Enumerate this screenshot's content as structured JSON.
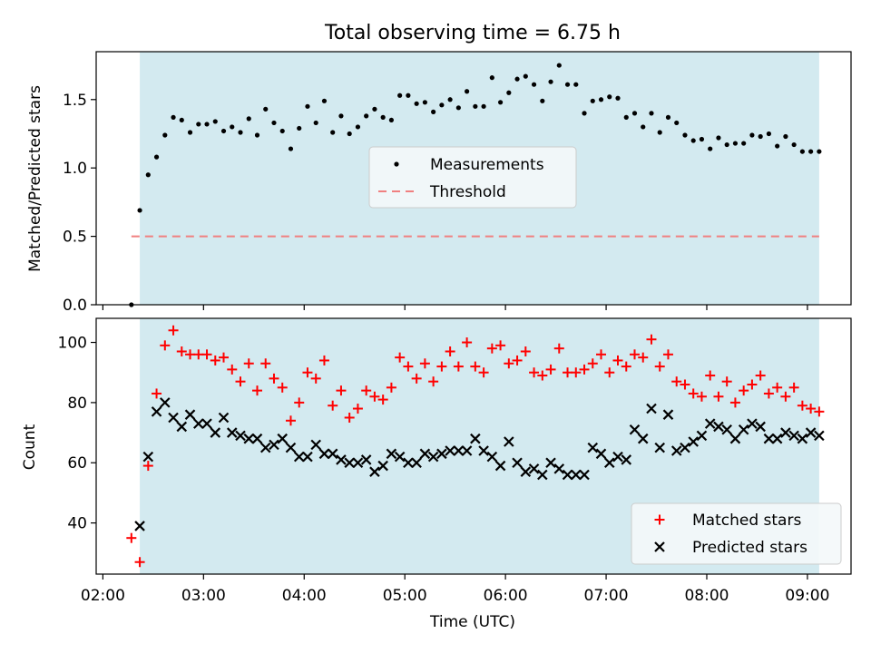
{
  "figure": {
    "title": "Total observing time = 6.75 h"
  },
  "colors": {
    "observing_span": "#d3eaf0",
    "measurements": "#000000",
    "threshold": "#f08080",
    "matched": "#ff0000",
    "predicted": "#000000"
  },
  "chart_data": [
    {
      "type": "scatter",
      "ylabel": "Matched/Predicted stars",
      "xlabel": "",
      "x_range": [
        "01:56",
        "09:26"
      ],
      "ylim": [
        0,
        1.85
      ],
      "yticks": [
        "0.0",
        "0.5",
        "1.0",
        "1.5"
      ],
      "shaded_span": [
        "02:22",
        "09:07"
      ],
      "threshold": 0.5,
      "threshold_range": [
        "02:17",
        "09:07"
      ],
      "legend": {
        "position": "center",
        "entries": [
          "Measurements",
          "Threshold"
        ]
      },
      "series": [
        {
          "name": "Measurements",
          "x": [
            "02:17",
            "02:22",
            "02:27",
            "02:32",
            "02:37",
            "02:42",
            "02:47",
            "02:52",
            "02:57",
            "03:02",
            "03:07",
            "03:12",
            "03:17",
            "03:22",
            "03:27",
            "03:32",
            "03:37",
            "03:42",
            "03:47",
            "03:52",
            "03:57",
            "04:02",
            "04:07",
            "04:12",
            "04:17",
            "04:22",
            "04:27",
            "04:32",
            "04:37",
            "04:42",
            "04:47",
            "04:52",
            "04:57",
            "05:02",
            "05:07",
            "05:12",
            "05:17",
            "05:22",
            "05:27",
            "05:32",
            "05:37",
            "05:42",
            "05:47",
            "05:52",
            "05:57",
            "06:02",
            "06:07",
            "06:12",
            "06:17",
            "06:22",
            "06:27",
            "06:32",
            "06:37",
            "06:42",
            "06:47",
            "06:52",
            "06:57",
            "07:02",
            "07:07",
            "07:12",
            "07:17",
            "07:22",
            "07:27",
            "07:32",
            "07:37",
            "07:42",
            "07:47",
            "07:52",
            "07:57",
            "08:02",
            "08:07",
            "08:12",
            "08:17",
            "08:22",
            "08:27",
            "08:32",
            "08:37",
            "08:42",
            "08:47",
            "08:52",
            "08:57",
            "09:02",
            "09:07"
          ],
          "values": [
            0.0,
            0.69,
            0.95,
            1.08,
            1.24,
            1.37,
            1.35,
            1.26,
            1.32,
            1.32,
            1.34,
            1.27,
            1.3,
            1.26,
            1.36,
            1.24,
            1.43,
            1.33,
            1.27,
            1.14,
            1.29,
            1.45,
            1.33,
            1.49,
            1.26,
            1.38,
            1.25,
            1.3,
            1.38,
            1.43,
            1.37,
            1.35,
            1.53,
            1.53,
            1.47,
            1.48,
            1.41,
            1.46,
            1.5,
            1.44,
            1.56,
            1.45,
            1.45,
            1.66,
            1.48,
            1.55,
            1.65,
            1.67,
            1.61,
            1.49,
            1.63,
            1.75,
            1.61,
            1.61,
            1.4,
            1.49,
            1.5,
            1.52,
            1.51,
            1.37,
            1.4,
            1.3,
            1.4,
            1.26,
            1.37,
            1.33,
            1.24,
            1.2,
            1.21,
            1.14,
            1.22,
            1.17,
            1.18,
            1.18,
            1.24,
            1.23,
            1.25,
            1.16,
            1.23,
            1.17,
            1.12,
            1.12,
            1.12
          ]
        }
      ]
    },
    {
      "type": "scatter",
      "ylabel": "Count",
      "xlabel": "Time (UTC)",
      "x_range": [
        "01:56",
        "09:26"
      ],
      "xticks": [
        "02:00",
        "03:00",
        "04:00",
        "05:00",
        "06:00",
        "07:00",
        "08:00",
        "09:00"
      ],
      "ylim": [
        23,
        108
      ],
      "yticks": [
        "40",
        "60",
        "80",
        "100"
      ],
      "shaded_span": [
        "02:22",
        "09:07"
      ],
      "legend": {
        "position": "lower right",
        "entries": [
          "Matched stars",
          "Predicted stars"
        ]
      },
      "series": [
        {
          "name": "Matched stars",
          "x": [
            "02:17",
            "02:22",
            "02:27",
            "02:32",
            "02:37",
            "02:42",
            "02:47",
            "02:52",
            "02:57",
            "03:02",
            "03:07",
            "03:12",
            "03:17",
            "03:22",
            "03:27",
            "03:32",
            "03:37",
            "03:42",
            "03:47",
            "03:52",
            "03:57",
            "04:02",
            "04:07",
            "04:12",
            "04:17",
            "04:22",
            "04:27",
            "04:32",
            "04:37",
            "04:42",
            "04:47",
            "04:52",
            "04:57",
            "05:02",
            "05:07",
            "05:12",
            "05:17",
            "05:22",
            "05:27",
            "05:32",
            "05:37",
            "05:42",
            "05:47",
            "05:52",
            "05:57",
            "06:02",
            "06:07",
            "06:12",
            "06:17",
            "06:22",
            "06:27",
            "06:32",
            "06:37",
            "06:42",
            "06:47",
            "06:52",
            "06:57",
            "07:02",
            "07:07",
            "07:12",
            "07:17",
            "07:22",
            "07:27",
            "07:32",
            "07:37",
            "07:42",
            "07:47",
            "07:52",
            "07:57",
            "08:02",
            "08:07",
            "08:12",
            "08:17",
            "08:22",
            "08:27",
            "08:32",
            "08:37",
            "08:42",
            "08:47",
            "08:52",
            "08:57",
            "09:02",
            "09:07"
          ],
          "values": [
            35,
            27,
            59,
            83,
            99,
            104,
            97,
            96,
            96,
            96,
            94,
            95,
            91,
            87,
            93,
            84,
            93,
            88,
            85,
            74,
            80,
            90,
            88,
            94,
            79,
            84,
            75,
            78,
            84,
            82,
            81,
            85,
            95,
            92,
            88,
            93,
            87,
            92,
            97,
            92,
            100,
            92,
            90,
            98,
            99,
            93,
            94,
            97,
            90,
            89,
            91,
            98,
            90,
            90,
            91,
            93,
            96,
            90,
            94,
            92,
            96,
            95,
            101,
            92,
            96,
            87,
            86,
            83,
            82,
            89,
            82,
            87,
            80,
            84,
            86,
            89,
            83,
            85,
            82,
            85,
            79,
            78,
            77
          ]
        },
        {
          "name": "Predicted stars",
          "x": [
            "02:22",
            "02:27",
            "02:32",
            "02:37",
            "02:42",
            "02:47",
            "02:52",
            "02:57",
            "03:02",
            "03:07",
            "03:12",
            "03:17",
            "03:22",
            "03:27",
            "03:32",
            "03:37",
            "03:42",
            "03:47",
            "03:52",
            "03:57",
            "04:02",
            "04:07",
            "04:12",
            "04:17",
            "04:22",
            "04:27",
            "04:32",
            "04:37",
            "04:42",
            "04:47",
            "04:52",
            "04:57",
            "05:02",
            "05:07",
            "05:12",
            "05:17",
            "05:22",
            "05:27",
            "05:32",
            "05:37",
            "05:42",
            "05:47",
            "05:52",
            "05:57",
            "06:02",
            "06:07",
            "06:12",
            "06:17",
            "06:22",
            "06:27",
            "06:32",
            "06:37",
            "06:42",
            "06:47",
            "06:52",
            "06:57",
            "07:02",
            "07:07",
            "07:12",
            "07:17",
            "07:22",
            "07:27",
            "07:32",
            "07:37",
            "07:42",
            "07:47",
            "07:52",
            "07:57",
            "08:02",
            "08:07",
            "08:12",
            "08:17",
            "08:22",
            "08:27",
            "08:32",
            "08:37",
            "08:42",
            "08:47",
            "08:52",
            "08:57",
            "09:02",
            "09:07"
          ],
          "values": [
            39,
            62,
            77,
            80,
            75,
            72,
            76,
            73,
            73,
            70,
            75,
            70,
            69,
            68,
            68,
            65,
            66,
            68,
            65,
            62,
            62,
            66,
            63,
            63,
            61,
            60,
            60,
            61,
            57,
            59,
            63,
            62,
            60,
            60,
            63,
            62,
            63,
            64,
            64,
            64,
            68,
            64,
            62,
            59,
            67,
            60,
            57,
            58,
            56,
            60,
            58,
            56,
            56,
            56,
            65,
            63,
            60,
            62,
            61,
            71,
            68,
            78,
            65,
            76,
            64,
            65,
            67,
            69,
            73,
            72,
            71,
            68,
            71,
            73,
            72,
            68,
            68,
            70,
            69,
            68,
            70,
            69
          ]
        }
      ]
    }
  ]
}
